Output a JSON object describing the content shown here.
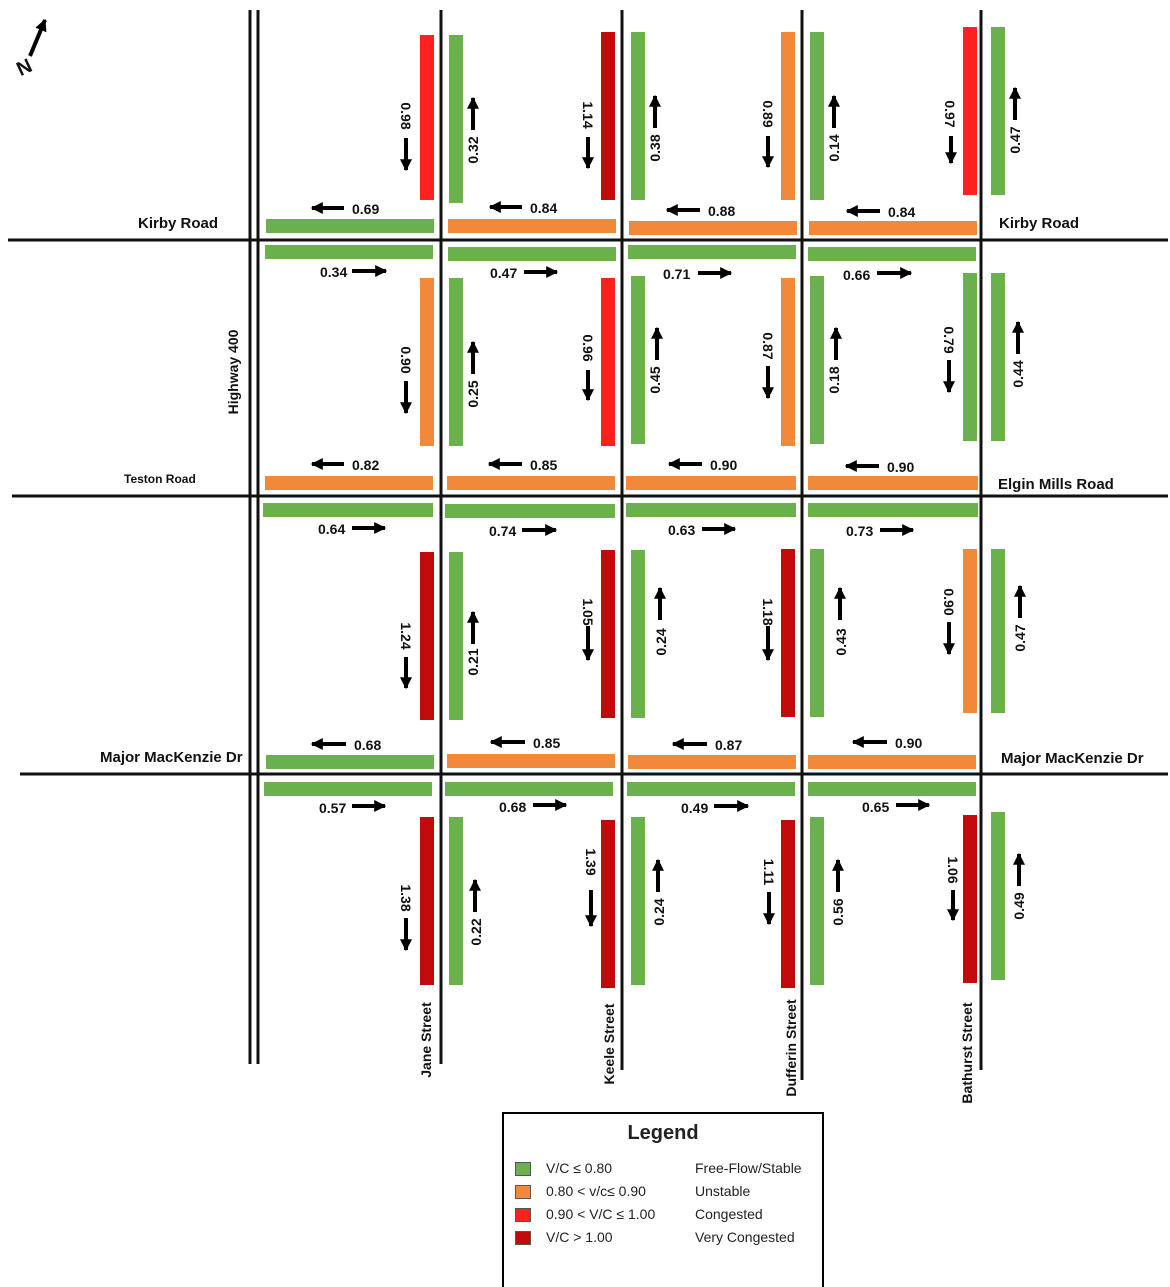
{
  "colors": {
    "free_flow": "#6ab04c",
    "unstable": "#f08a3a",
    "congested": "#ff2020",
    "very_congested": "#c20a0a",
    "road": "#111111"
  },
  "north_arrow": {
    "icon": "north-arrow-icon",
    "label": "N"
  },
  "road_labels": {
    "kirby_west": "Kirby Road",
    "kirby_east": "Kirby Road",
    "teston": "Teston Road",
    "elgin_mills": "Elgin Mills Road",
    "major_mackenzie_west": "Major MacKenzie Dr",
    "major_mackenzie_east": "Major MacKenzie Dr",
    "highway_400": "Highway 400",
    "jane": "Jane Street",
    "keele": "Keele Street",
    "dufferin": "Dufferin Street",
    "bathurst": "Bathurst Street"
  },
  "links": {
    "vertical": [
      {
        "value": "0.98",
        "level": "congested",
        "dir": "down"
      },
      {
        "value": "0.32",
        "level": "free_flow",
        "dir": "up"
      },
      {
        "value": "1.14",
        "level": "very_congested",
        "dir": "down"
      },
      {
        "value": "0.38",
        "level": "free_flow",
        "dir": "up"
      },
      {
        "value": "0.89",
        "level": "unstable",
        "dir": "down"
      },
      {
        "value": "0.14",
        "level": "free_flow",
        "dir": "up"
      },
      {
        "value": "0.97",
        "level": "congested",
        "dir": "down"
      },
      {
        "value": "0.47",
        "level": "free_flow",
        "dir": "up"
      },
      {
        "value": "0.90",
        "level": "unstable",
        "dir": "down"
      },
      {
        "value": "0.25",
        "level": "free_flow",
        "dir": "up"
      },
      {
        "value": "0.96",
        "level": "congested",
        "dir": "down"
      },
      {
        "value": "0.45",
        "level": "free_flow",
        "dir": "up"
      },
      {
        "value": "0.87",
        "level": "unstable",
        "dir": "down"
      },
      {
        "value": "0.18",
        "level": "free_flow",
        "dir": "up"
      },
      {
        "value": "0.79",
        "level": "free_flow",
        "dir": "down"
      },
      {
        "value": "0.44",
        "level": "free_flow",
        "dir": "up"
      },
      {
        "value": "1.24",
        "level": "very_congested",
        "dir": "down"
      },
      {
        "value": "0.21",
        "level": "free_flow",
        "dir": "up"
      },
      {
        "value": "1.05",
        "level": "very_congested",
        "dir": "down"
      },
      {
        "value": "0.24",
        "level": "free_flow",
        "dir": "up"
      },
      {
        "value": "1.18",
        "level": "very_congested",
        "dir": "down"
      },
      {
        "value": "0.43",
        "level": "free_flow",
        "dir": "up"
      },
      {
        "value": "0.90",
        "level": "unstable",
        "dir": "down"
      },
      {
        "value": "0.47",
        "level": "free_flow",
        "dir": "up"
      },
      {
        "value": "1.38",
        "level": "very_congested",
        "dir": "down"
      },
      {
        "value": "0.22",
        "level": "free_flow",
        "dir": "up"
      },
      {
        "value": "1.39",
        "level": "very_congested",
        "dir": "down"
      },
      {
        "value": "0.24",
        "level": "free_flow",
        "dir": "up"
      },
      {
        "value": "1.11",
        "level": "very_congested",
        "dir": "down"
      },
      {
        "value": "0.56",
        "level": "free_flow",
        "dir": "up"
      },
      {
        "value": "1.06",
        "level": "very_congested",
        "dir": "down"
      },
      {
        "value": "0.49",
        "level": "free_flow",
        "dir": "up"
      }
    ],
    "horizontal": [
      {
        "value": "0.69",
        "level": "free_flow",
        "dir": "left"
      },
      {
        "value": "0.84",
        "level": "unstable",
        "dir": "left"
      },
      {
        "value": "0.88",
        "level": "unstable",
        "dir": "left"
      },
      {
        "value": "0.84",
        "level": "unstable",
        "dir": "left"
      },
      {
        "value": "0.34",
        "level": "free_flow",
        "dir": "right"
      },
      {
        "value": "0.47",
        "level": "free_flow",
        "dir": "right"
      },
      {
        "value": "0.71",
        "level": "free_flow",
        "dir": "right"
      },
      {
        "value": "0.66",
        "level": "free_flow",
        "dir": "right"
      },
      {
        "value": "0.82",
        "level": "unstable",
        "dir": "left"
      },
      {
        "value": "0.85",
        "level": "unstable",
        "dir": "left"
      },
      {
        "value": "0.90",
        "level": "unstable",
        "dir": "left"
      },
      {
        "value": "0.90",
        "level": "unstable",
        "dir": "left"
      },
      {
        "value": "0.64",
        "level": "free_flow",
        "dir": "right"
      },
      {
        "value": "0.74",
        "level": "free_flow",
        "dir": "right"
      },
      {
        "value": "0.63",
        "level": "free_flow",
        "dir": "right"
      },
      {
        "value": "0.73",
        "level": "free_flow",
        "dir": "right"
      },
      {
        "value": "0.68",
        "level": "free_flow",
        "dir": "left"
      },
      {
        "value": "0.85",
        "level": "unstable",
        "dir": "left"
      },
      {
        "value": "0.87",
        "level": "unstable",
        "dir": "left"
      },
      {
        "value": "0.90",
        "level": "unstable",
        "dir": "left"
      },
      {
        "value": "0.57",
        "level": "free_flow",
        "dir": "right"
      },
      {
        "value": "0.68",
        "level": "free_flow",
        "dir": "right"
      },
      {
        "value": "0.49",
        "level": "free_flow",
        "dir": "right"
      },
      {
        "value": "0.65",
        "level": "free_flow",
        "dir": "right"
      }
    ]
  },
  "legend": {
    "title": "Legend",
    "items": [
      {
        "level": "free_flow",
        "range": "V/C ≤ 0.80",
        "desc": "Free-Flow/Stable"
      },
      {
        "level": "unstable",
        "range": "0.80 < v/c≤ 0.90",
        "desc": "Unstable"
      },
      {
        "level": "congested",
        "range": "0.90 < V/C ≤ 1.00",
        "desc": "Congested"
      },
      {
        "level": "very_congested",
        "range": "V/C > 1.00",
        "desc": "Very Congested"
      }
    ]
  }
}
